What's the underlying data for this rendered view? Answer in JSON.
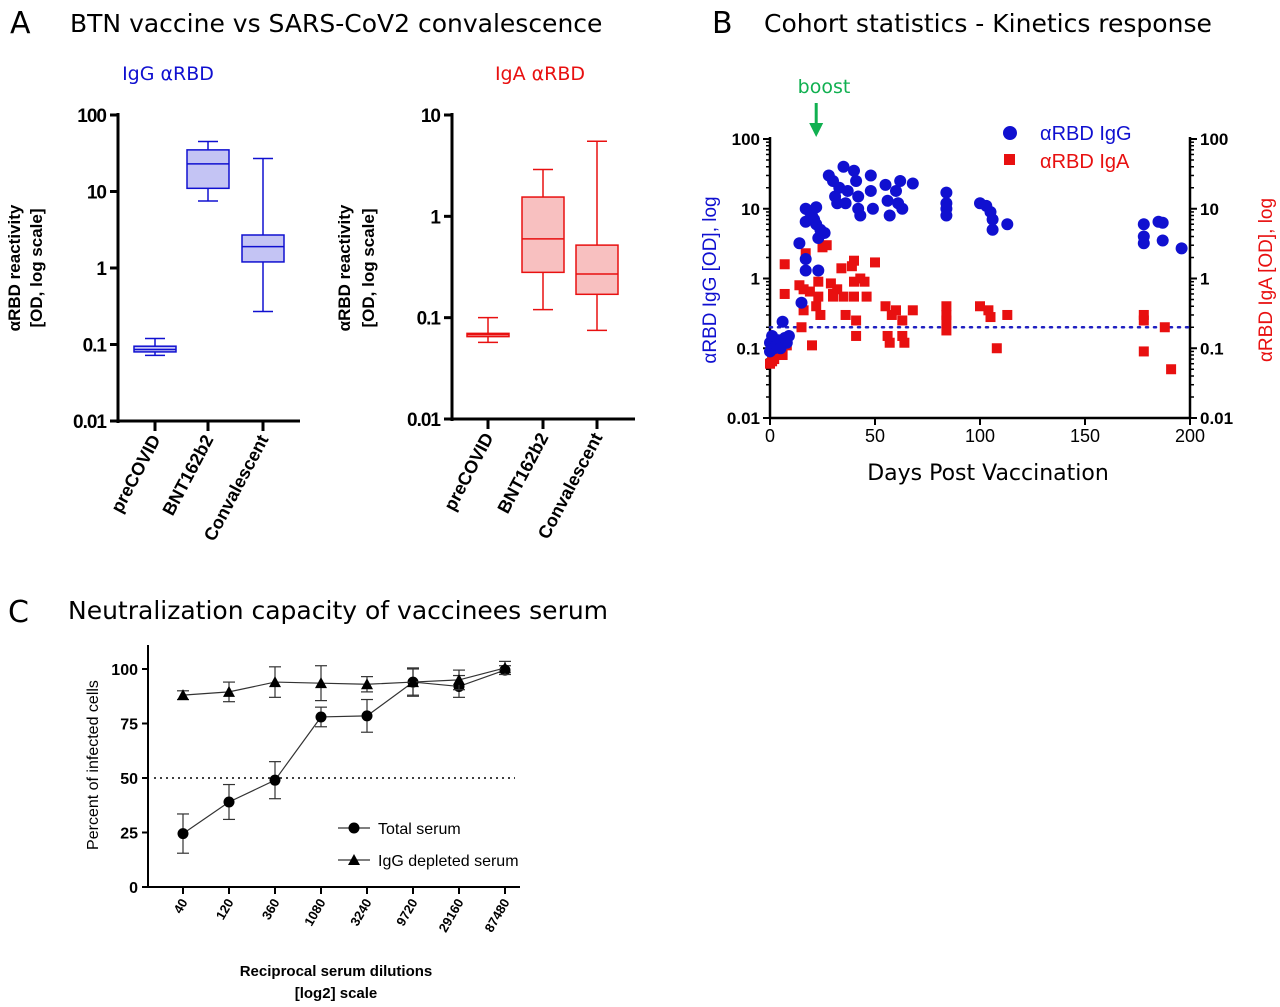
{
  "panels": {
    "a": {
      "letter": "A",
      "title": "BTN vaccine vs SARS-CoV2 convalescence",
      "sub_igg": "IgG αRBD",
      "sub_iga": "IgA αRBD",
      "ylabel1": "αRBD reactivity",
      "ylabel2": "[OD, log scale]"
    },
    "b": {
      "letter": "B",
      "title": "Cohort statistics - Kinetics response",
      "annotation": "boost",
      "ylabel_left": "αRBD IgG  [OD], log",
      "ylabel_right": "αRBD IgA  [OD], log",
      "xlabel": "Days Post Vaccination"
    },
    "c": {
      "letter": "C",
      "title": "Neutralization capacity of vaccinees serum",
      "ylabel": "Percent of infected cells",
      "xlabel1": "Reciprocal serum dilutions",
      "xlabel2": "[log2] scale"
    }
  },
  "colors": {
    "igg": "#1010d0",
    "iga": "#e81010",
    "igg_fill": "#c4c4f4",
    "iga_fill": "#f8c0c0",
    "boost": "#10b050"
  },
  "chart_data": [
    {
      "type": "box",
      "title": "IgG αRBD",
      "ylabel": "αRBD reactivity [OD, log scale]",
      "yscale": "log",
      "ylim": [
        0.01,
        100
      ],
      "yticks": [
        "0.01",
        "0.1",
        "1",
        "10",
        "100"
      ],
      "categories": [
        "preCOVID",
        "BNT162b2",
        "Convalescent"
      ],
      "boxes": [
        {
          "min": 0.072,
          "q1": 0.08,
          "median": 0.086,
          "q3": 0.095,
          "max": 0.12
        },
        {
          "min": 7.5,
          "q1": 11,
          "median": 23,
          "q3": 35,
          "max": 45
        },
        {
          "min": 0.27,
          "q1": 1.2,
          "median": 1.9,
          "q3": 2.7,
          "max": 27
        }
      ]
    },
    {
      "type": "box",
      "title": "IgA αRBD",
      "ylabel": "αRBD reactivity [OD, log scale]",
      "yscale": "log",
      "ylim": [
        0.01,
        10
      ],
      "yticks": [
        "0.01",
        "0.1",
        "1",
        "10"
      ],
      "categories": [
        "preCOVID",
        "BNT162b2",
        "Convalescent"
      ],
      "boxes": [
        {
          "min": 0.057,
          "q1": 0.065,
          "median": 0.068,
          "q3": 0.07,
          "max": 0.1
        },
        {
          "min": 0.12,
          "q1": 0.28,
          "median": 0.6,
          "q3": 1.55,
          "max": 2.9
        },
        {
          "min": 0.075,
          "q1": 0.17,
          "median": 0.27,
          "q3": 0.52,
          "max": 5.5
        }
      ]
    },
    {
      "type": "scatter",
      "title": "Cohort statistics - Kinetics response",
      "xlabel": "Days Post Vaccination",
      "ylabel_left": "αRBD IgG [OD], log",
      "ylabel_right": "αRBD IgA [OD], log",
      "yscale": "log",
      "xlim": [
        0,
        200
      ],
      "ylim": [
        0.01,
        100
      ],
      "xticks": [
        "0",
        "50",
        "100",
        "150",
        "200"
      ],
      "yticks": [
        "0.01",
        "0.1",
        "1",
        "10",
        "100"
      ],
      "threshold": 0.2,
      "boost_day": 22,
      "legend": "top-right",
      "series": [
        {
          "name": "αRBD IgG",
          "marker": "circle",
          "points": [
            [
              0,
              0.09
            ],
            [
              0,
              0.12
            ],
            [
              1,
              0.15
            ],
            [
              2,
              0.1
            ],
            [
              3,
              0.11
            ],
            [
              4,
              0.13
            ],
            [
              5,
              0.1
            ],
            [
              6,
              0.24
            ],
            [
              7,
              0.14
            ],
            [
              8,
              0.12
            ],
            [
              9,
              0.15
            ],
            [
              14,
              3.2
            ],
            [
              15,
              0.45
            ],
            [
              17,
              1.9
            ],
            [
              17,
              1.3
            ],
            [
              17,
              6.5
            ],
            [
              17,
              10
            ],
            [
              19,
              9
            ],
            [
              20,
              8
            ],
            [
              21,
              7
            ],
            [
              22,
              6
            ],
            [
              22,
              10.5
            ],
            [
              23,
              1.3
            ],
            [
              23,
              3.8
            ],
            [
              24,
              5
            ],
            [
              26,
              4.5
            ],
            [
              28,
              30
            ],
            [
              30,
              25
            ],
            [
              31,
              15
            ],
            [
              32,
              12
            ],
            [
              33,
              20
            ],
            [
              35,
              40
            ],
            [
              36,
              12
            ],
            [
              37,
              18
            ],
            [
              40,
              35
            ],
            [
              41,
              25
            ],
            [
              42,
              15
            ],
            [
              42,
              10
            ],
            [
              43,
              8
            ],
            [
              48,
              30
            ],
            [
              48,
              18
            ],
            [
              49,
              10
            ],
            [
              55,
              22
            ],
            [
              56,
              13
            ],
            [
              57,
              8
            ],
            [
              60,
              18
            ],
            [
              61,
              12
            ],
            [
              62,
              25
            ],
            [
              63,
              10
            ],
            [
              68,
              23
            ],
            [
              84,
              17
            ],
            [
              84,
              12
            ],
            [
              84,
              10
            ],
            [
              84,
              8
            ],
            [
              100,
              12
            ],
            [
              103,
              11
            ],
            [
              105,
              9
            ],
            [
              106,
              7
            ],
            [
              106,
              5
            ],
            [
              113,
              6
            ],
            [
              178,
              6
            ],
            [
              178,
              4
            ],
            [
              178,
              3.2
            ],
            [
              185,
              6.5
            ],
            [
              187,
              6.3
            ],
            [
              187,
              3.5
            ],
            [
              196,
              2.7
            ]
          ]
        },
        {
          "name": "αRBD IgA",
          "marker": "square",
          "points": [
            [
              0,
              0.06
            ],
            [
              1,
              0.065
            ],
            [
              2,
              0.07
            ],
            [
              3,
              0.08
            ],
            [
              5,
              0.09
            ],
            [
              6,
              0.08
            ],
            [
              7,
              0.6
            ],
            [
              7,
              1.6
            ],
            [
              8,
              0.11
            ],
            [
              14,
              0.8
            ],
            [
              15,
              0.2
            ],
            [
              16,
              0.7
            ],
            [
              16,
              0.35
            ],
            [
              17,
              2.3
            ],
            [
              19,
              0.65
            ],
            [
              20,
              0.11
            ],
            [
              22,
              0.4
            ],
            [
              23,
              0.9
            ],
            [
              23,
              0.55
            ],
            [
              24,
              0.3
            ],
            [
              25,
              2.8
            ],
            [
              27,
              3
            ],
            [
              29,
              0.85
            ],
            [
              30,
              0.6
            ],
            [
              30,
              0.55
            ],
            [
              32,
              0.7
            ],
            [
              34,
              1.4
            ],
            [
              35,
              0.55
            ],
            [
              36,
              0.3
            ],
            [
              39,
              1.5
            ],
            [
              40,
              1.8
            ],
            [
              40,
              0.9
            ],
            [
              40,
              0.55
            ],
            [
              41,
              0.25
            ],
            [
              41,
              0.15
            ],
            [
              43,
              1
            ],
            [
              45,
              0.9
            ],
            [
              46,
              0.55
            ],
            [
              50,
              1.7
            ],
            [
              55,
              0.4
            ],
            [
              56,
              0.15
            ],
            [
              57,
              0.12
            ],
            [
              58,
              0.3
            ],
            [
              60,
              0.35
            ],
            [
              63,
              0.25
            ],
            [
              63,
              0.15
            ],
            [
              64,
              0.12
            ],
            [
              68,
              0.35
            ],
            [
              84,
              0.4
            ],
            [
              84,
              0.3
            ],
            [
              84,
              0.25
            ],
            [
              84,
              0.18
            ],
            [
              100,
              0.4
            ],
            [
              104,
              0.35
            ],
            [
              105,
              0.28
            ],
            [
              108,
              0.1
            ],
            [
              113,
              0.3
            ],
            [
              178,
              0.3
            ],
            [
              178,
              0.25
            ],
            [
              178,
              0.09
            ],
            [
              188,
              0.2
            ],
            [
              191,
              0.05
            ]
          ]
        }
      ]
    },
    {
      "type": "line",
      "title": "Neutralization capacity of vaccinees serum",
      "ylabel": "Percent of infected cells",
      "xlabel": "Reciprocal serum dilutions [log2] scale",
      "ylim": [
        0,
        110
      ],
      "yticks": [
        "0",
        "25",
        "50",
        "75",
        "100"
      ],
      "categories": [
        "40",
        "120",
        "360",
        "1080",
        "3240",
        "9720",
        "29160",
        "87480"
      ],
      "threshold": 50,
      "legend": "bottom-right",
      "series": [
        {
          "name": "Total serum",
          "marker": "circle",
          "values": [
            24.5,
            39,
            49,
            78,
            78.5,
            94,
            92,
            99.5
          ],
          "errors": [
            9,
            8,
            8.5,
            4.5,
            7.5,
            6,
            5,
            2
          ]
        },
        {
          "name": "IgG depleted serum",
          "marker": "triangle",
          "values": [
            88,
            89.5,
            94,
            93.5,
            93,
            94,
            95,
            100.5
          ],
          "errors": [
            2,
            4.5,
            7,
            8,
            3.5,
            6.5,
            4.5,
            3
          ]
        }
      ]
    }
  ]
}
